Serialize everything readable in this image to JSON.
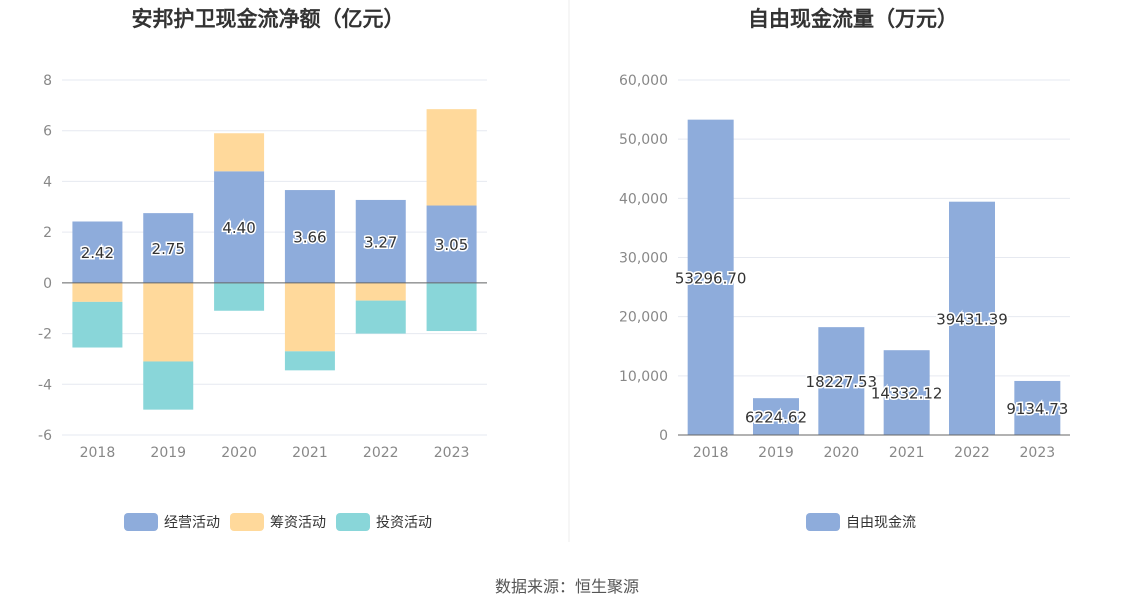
{
  "colors": {
    "operating": "#8eacdb",
    "financing": "#ffd99b",
    "investing": "#89d6d9",
    "fcf": "#8eacdb",
    "grid": "#e6e9f0",
    "axis": "#666666"
  },
  "source_text": "数据来源：恒生聚源",
  "chart_data": [
    {
      "type": "bar",
      "stacked": true,
      "title": "安邦护卫现金流净额（亿元）",
      "categories": [
        "2018",
        "2019",
        "2020",
        "2021",
        "2022",
        "2023"
      ],
      "ylim": [
        -6,
        8
      ],
      "yticks": [
        -6,
        -4,
        -2,
        0,
        2,
        4,
        6,
        8
      ],
      "ytick_labels": [
        "-6",
        "-4",
        "-2",
        "0",
        "2",
        "4",
        "6",
        "8"
      ],
      "series": [
        {
          "name": "经营活动",
          "color_key": "operating",
          "values": [
            2.42,
            2.75,
            4.4,
            3.66,
            3.27,
            3.05
          ],
          "labels": [
            "2.42",
            "2.75",
            "4.40",
            "3.66",
            "3.27",
            "3.05"
          ]
        },
        {
          "name": "筹资活动",
          "color_key": "financing",
          "values": [
            -0.75,
            -3.1,
            1.5,
            -2.7,
            -0.7,
            3.8
          ]
        },
        {
          "name": "投资活动",
          "color_key": "investing",
          "values": [
            -1.8,
            -1.9,
            -1.1,
            -0.75,
            -1.3,
            -1.9
          ]
        }
      ],
      "legend": [
        "经营活动",
        "筹资活动",
        "投资活动"
      ]
    },
    {
      "type": "bar",
      "title": "自由现金流量（万元）",
      "categories": [
        "2018",
        "2019",
        "2020",
        "2021",
        "2022",
        "2023"
      ],
      "ylim": [
        0,
        60000
      ],
      "yticks": [
        0,
        10000,
        20000,
        30000,
        40000,
        50000,
        60000
      ],
      "ytick_labels": [
        "0",
        "10,000",
        "20,000",
        "30,000",
        "40,000",
        "50,000",
        "60,000"
      ],
      "series": [
        {
          "name": "自由现金流",
          "color_key": "fcf",
          "values": [
            53296.7,
            6224.62,
            18227.53,
            14332.12,
            39431.39,
            9134.73
          ],
          "labels": [
            "53296.70",
            "6224.62",
            "18227.53",
            "14332.12",
            "39431.39",
            "9134.73"
          ]
        }
      ],
      "legend": [
        "自由现金流"
      ]
    }
  ]
}
